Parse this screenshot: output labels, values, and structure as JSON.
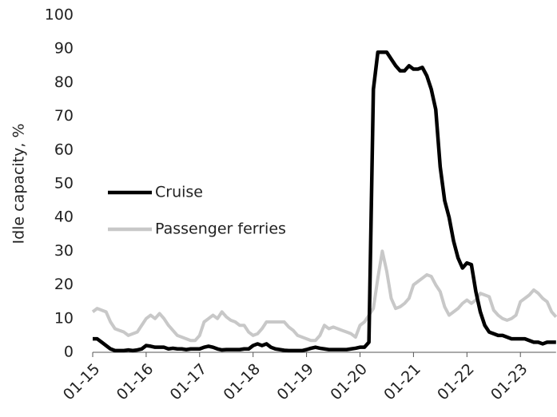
{
  "chart_data": {
    "type": "line",
    "y_label": "Idle capacity, %",
    "categories": [
      "01-15",
      null,
      null,
      null,
      null,
      null,
      null,
      null,
      null,
      null,
      null,
      null,
      "01-16",
      null,
      null,
      null,
      null,
      null,
      null,
      null,
      null,
      null,
      null,
      null,
      "01-17",
      null,
      null,
      null,
      null,
      null,
      null,
      null,
      null,
      null,
      null,
      null,
      "01-18",
      null,
      null,
      null,
      null,
      null,
      null,
      null,
      null,
      null,
      null,
      null,
      "01-19",
      null,
      null,
      null,
      null,
      null,
      null,
      null,
      null,
      null,
      null,
      null,
      "01-20",
      null,
      null,
      null,
      null,
      null,
      null,
      null,
      null,
      null,
      null,
      null,
      "01-21",
      null,
      null,
      null,
      null,
      null,
      null,
      null,
      null,
      null,
      null,
      null,
      "01-22",
      null,
      null,
      null,
      null,
      null,
      null,
      null,
      null,
      null,
      null,
      null,
      "01-23",
      null,
      null,
      null,
      null,
      null,
      null,
      null,
      null
    ],
    "series": [
      {
        "name": "Cruise",
        "color": "#000000",
        "values": [
          4,
          4,
          3,
          2,
          1,
          0.5,
          0.5,
          0.5,
          0.7,
          0.5,
          0.7,
          1,
          2,
          1.8,
          1.5,
          1.5,
          1.5,
          1,
          1.2,
          1,
          1,
          0.8,
          1,
          1,
          1,
          1.5,
          1.8,
          1.5,
          1,
          0.7,
          0.8,
          0.8,
          0.8,
          0.8,
          1,
          1,
          2,
          2.5,
          2,
          2.5,
          1.5,
          1,
          0.8,
          0.6,
          0.5,
          0.5,
          0.5,
          0.5,
          0.8,
          1.2,
          1.5,
          1.2,
          1,
          0.8,
          0.8,
          0.8,
          0.8,
          0.8,
          1,
          1.2,
          1.5,
          1.5,
          3,
          78,
          89,
          89,
          89,
          87,
          85,
          83.5,
          83.5,
          85,
          84,
          84,
          84.5,
          82,
          78,
          72,
          55,
          45,
          40,
          33,
          28,
          25,
          26.5,
          26,
          18,
          12,
          8,
          6,
          5.5,
          5,
          5,
          4.5,
          4,
          4,
          4,
          4,
          3.5,
          3,
          3,
          2.5,
          3,
          3,
          3
        ]
      },
      {
        "name": "Passenger ferries",
        "color": "#c8c8c8",
        "values": [
          12,
          13,
          12.5,
          12,
          9,
          7,
          6.5,
          6,
          5,
          5.5,
          6,
          8,
          10,
          11,
          10,
          11.5,
          10,
          8,
          6.5,
          5,
          4.5,
          4,
          3.5,
          3.5,
          5,
          9,
          10,
          11,
          10,
          12,
          10.5,
          9.5,
          9,
          8,
          8,
          6,
          5,
          5.5,
          7,
          9,
          9,
          9,
          9,
          9,
          7.5,
          6.5,
          5,
          4.5,
          4,
          3.5,
          3.5,
          5,
          8,
          7,
          7.5,
          7,
          6.5,
          6,
          5.5,
          4.5,
          8,
          9,
          11,
          13,
          22,
          30,
          24,
          16,
          13,
          13.5,
          14.5,
          16,
          20,
          21,
          22,
          23,
          22.5,
          20,
          18,
          13.5,
          11,
          12,
          13,
          14.5,
          15.5,
          14.5,
          15.5,
          17.5,
          17,
          16.5,
          12.5,
          11,
          10,
          9.5,
          10,
          11,
          15,
          16,
          17,
          18.5,
          17.5,
          16,
          15,
          12,
          10.5
        ]
      }
    ],
    "ylim": [
      0,
      100
    ],
    "yticks": [
      0,
      10,
      20,
      30,
      40,
      50,
      60,
      70,
      80,
      90,
      100
    ],
    "grid": false
  }
}
